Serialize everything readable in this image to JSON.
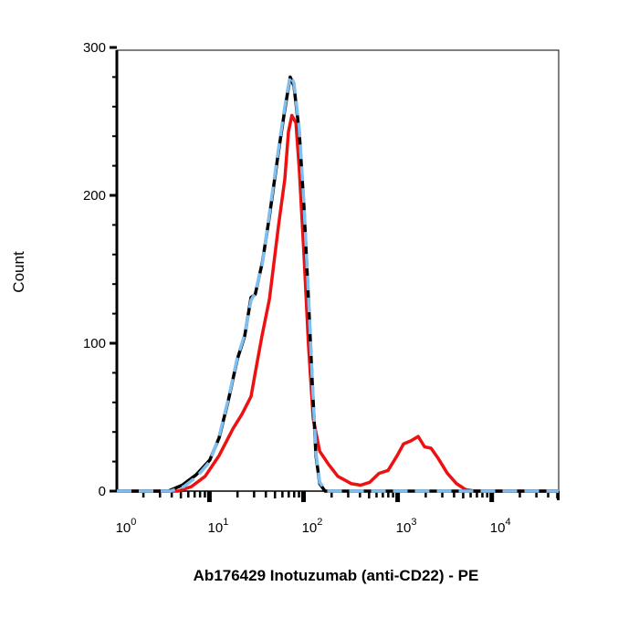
{
  "chart_data": {
    "type": "line",
    "title": "",
    "xlabel": "Ab176429 Inotuzumab (anti-CD22) - PE",
    "ylabel": "Count",
    "x_scale": "log",
    "xlim": [
      1.05,
      52000
    ],
    "ylim": [
      0,
      300
    ],
    "grid": false,
    "x_tick_labels": [
      {
        "base": "10",
        "exp": "0",
        "value": 1
      },
      {
        "base": "10",
        "exp": "1",
        "value": 10
      },
      {
        "base": "10",
        "exp": "2",
        "value": 100
      },
      {
        "base": "10",
        "exp": "3",
        "value": 1000
      },
      {
        "base": "10",
        "exp": "4",
        "value": 10000
      }
    ],
    "y_ticks": [
      0,
      100,
      200,
      300
    ],
    "series": [
      {
        "color": "#000000",
        "style": "solid",
        "x": [
          1.05,
          3.7,
          5.2,
          7.3,
          10.2,
          12.8,
          16,
          20,
          24,
          28,
          31,
          37,
          44,
          55,
          64,
          73,
          80,
          91,
          102,
          114,
          125,
          137,
          150,
          171,
          52000
        ],
        "y": [
          0,
          0,
          4,
          11,
          21,
          36,
          61,
          89,
          105,
          131,
          133,
          155,
          186,
          230,
          258,
          280,
          274,
          243,
          193,
          130,
          74,
          24,
          5,
          0,
          0
        ]
      },
      {
        "color": "#7fbfef",
        "style": "dashed",
        "x": [
          1.05,
          3.9,
          5.4,
          7.5,
          10.2,
          12.8,
          16,
          20,
          24,
          28,
          31,
          37,
          44,
          55,
          64,
          73,
          80,
          91,
          102,
          114,
          125,
          137,
          150,
          175,
          52000
        ],
        "y": [
          0,
          0,
          3,
          10,
          20,
          37,
          62,
          90,
          106,
          129,
          134,
          154,
          188,
          232,
          260,
          281,
          276,
          245,
          195,
          132,
          76,
          26,
          6,
          0,
          0
        ]
      },
      {
        "color": "#ee1111",
        "style": "solid",
        "x": [
          1.05,
          4.7,
          6.5,
          9.1,
          12.8,
          17.9,
          22.4,
          28,
          31,
          36.6,
          44,
          55,
          64,
          70,
          76,
          84,
          91,
          102,
          114,
          128,
          150,
          187,
          234,
          327,
          409,
          512,
          640,
          800,
          1000,
          1170,
          1400,
          1670,
          1950,
          2290,
          2740,
          3420,
          4280,
          5350,
          6680,
          52000
        ],
        "y": [
          0,
          0,
          3,
          10,
          24,
          42,
          52,
          64,
          80,
          105,
          130,
          180,
          211,
          243,
          254,
          249,
          218,
          161,
          99,
          49,
          27,
          18,
          10,
          5,
          4,
          6,
          12,
          14,
          24,
          32,
          34,
          37,
          30,
          29,
          22,
          12,
          5,
          1,
          0,
          0
        ]
      }
    ]
  }
}
